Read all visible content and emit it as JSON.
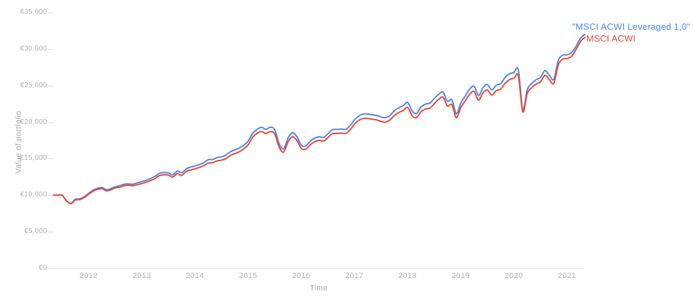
{
  "page": {
    "background": "#ffffff"
  },
  "chart_data": {
    "type": "line",
    "title": "",
    "xlabel": "Time",
    "ylabel": "Value of portfolio",
    "currency": "EUR",
    "x_start": "2011-05",
    "x_end": "2021-05",
    "x_frequency": "monthly",
    "x_tick_labels": [
      "2012",
      "2013",
      "2014",
      "2015",
      "2016",
      "2017",
      "2018",
      "2019",
      "2020",
      "2021"
    ],
    "y_tick_labels": [
      "€0",
      "€5,000",
      "€10,000",
      "€15,000",
      "€20,000",
      "€25,000",
      "€30,000",
      "€35,000"
    ],
    "ylim": [
      0,
      35000
    ],
    "y_tick_step": 5000,
    "grid": false,
    "legend_position": "top-right-inline-with-line-end",
    "series": [
      {
        "name": "\"MSCI ACWI Leveraged 1,0\"",
        "color": "#4e85ea",
        "values_eur": [
          10000,
          10000,
          10000,
          9250,
          8900,
          9450,
          9500,
          9800,
          10250,
          10700,
          10950,
          11050,
          10750,
          10900,
          11150,
          11300,
          11500,
          11550,
          11500,
          11700,
          11850,
          12050,
          12300,
          12600,
          13000,
          13100,
          13050,
          12800,
          13300,
          13050,
          13600,
          13850,
          14000,
          14200,
          14450,
          14850,
          14900,
          15150,
          15250,
          15500,
          15950,
          16200,
          16450,
          16850,
          17400,
          18450,
          19000,
          19300,
          19000,
          19300,
          18950,
          17050,
          16350,
          17800,
          18550,
          18000,
          16850,
          16750,
          17400,
          17800,
          18000,
          17900,
          18400,
          18950,
          19000,
          19050,
          19000,
          19500,
          20300,
          20850,
          21100,
          21100,
          21000,
          20900,
          20700,
          20600,
          20900,
          21550,
          21950,
          22250,
          22700,
          21550,
          21200,
          22050,
          22450,
          22600,
          23200,
          23800,
          24100,
          22850,
          23050,
          21150,
          22600,
          23550,
          24500,
          24900,
          23650,
          24700,
          25150,
          24400,
          25050,
          25250,
          26100,
          26600,
          26800,
          27100,
          21650,
          24400,
          25250,
          25800,
          26100,
          27050,
          26400,
          25850,
          28400,
          29150,
          29200,
          29500,
          30350,
          31450,
          32000
        ]
      },
      {
        "name": "MSCI ACWI",
        "color": "#e9443a",
        "values_eur": [
          10000,
          10000,
          10000,
          9200,
          8850,
          9350,
          9400,
          9700,
          10150,
          10550,
          10800,
          10900,
          10600,
          10750,
          11000,
          11100,
          11300,
          11350,
          11300,
          11450,
          11600,
          11800,
          12000,
          12300,
          12700,
          12800,
          12750,
          12500,
          12950,
          12700,
          13250,
          13450,
          13600,
          13800,
          14050,
          14400,
          14450,
          14700,
          14800,
          15000,
          15450,
          15700,
          15950,
          16350,
          16900,
          17900,
          18450,
          18700,
          18450,
          18700,
          18400,
          16600,
          15900,
          17300,
          18000,
          17500,
          16400,
          16300,
          16900,
          17300,
          17500,
          17400,
          17900,
          18400,
          18450,
          18500,
          18450,
          18950,
          19700,
          20250,
          20500,
          20500,
          20400,
          20300,
          20100,
          20000,
          20300,
          20900,
          21300,
          21600,
          22000,
          20900,
          20600,
          21400,
          21800,
          21900,
          22500,
          23100,
          23400,
          22200,
          22400,
          20600,
          22000,
          22900,
          23800,
          24200,
          23000,
          24000,
          24400,
          23700,
          24300,
          24500,
          25300,
          25800,
          26000,
          26300,
          21400,
          23900,
          24700,
          25200,
          25500,
          26400,
          25800,
          25300,
          27800,
          28600,
          28700,
          29000,
          29900,
          31000,
          31600
        ]
      }
    ],
    "axis_colors": {
      "tick_label": "#a9acb6",
      "axis_title": "#a2a5af",
      "axis_line": "#dcdde2",
      "tick_dash": "#d9dade"
    }
  }
}
